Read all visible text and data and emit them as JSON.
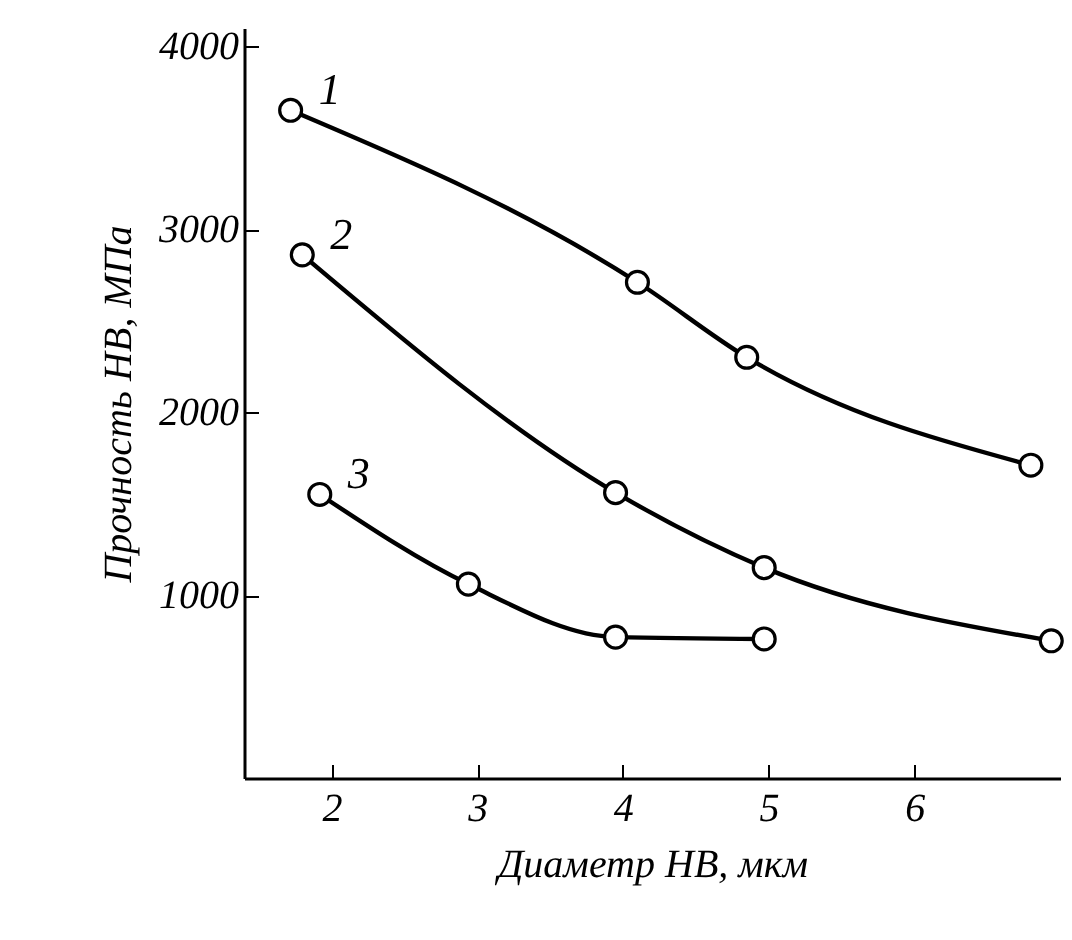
{
  "chart_data": {
    "type": "line",
    "xlabel": "Диаметр HB, мкм",
    "ylabel": "Прочность HB, МПа",
    "xlim": [
      1.4,
      7.0
    ],
    "ylim": [
      0,
      4100
    ],
    "xticks": [
      2,
      3,
      4,
      5,
      6
    ],
    "yticks": [
      1000,
      2000,
      3000,
      4000
    ],
    "grid": false,
    "marker": "circle",
    "line_style": "solid",
    "series": [
      {
        "name": "1",
        "color": "#000000",
        "x": [
          1.72,
          4.1,
          4.85,
          6.8
        ],
        "values": [
          3650,
          2710,
          2300,
          1710
        ]
      },
      {
        "name": "2",
        "color": "#000000",
        "x": [
          1.8,
          3.95,
          4.97,
          6.94
        ],
        "values": [
          2860,
          1560,
          1150,
          750
        ]
      },
      {
        "name": "3",
        "color": "#000000",
        "x": [
          1.92,
          2.94,
          3.95,
          4.97
        ],
        "values": [
          1550,
          1060,
          770,
          760
        ]
      }
    ]
  }
}
